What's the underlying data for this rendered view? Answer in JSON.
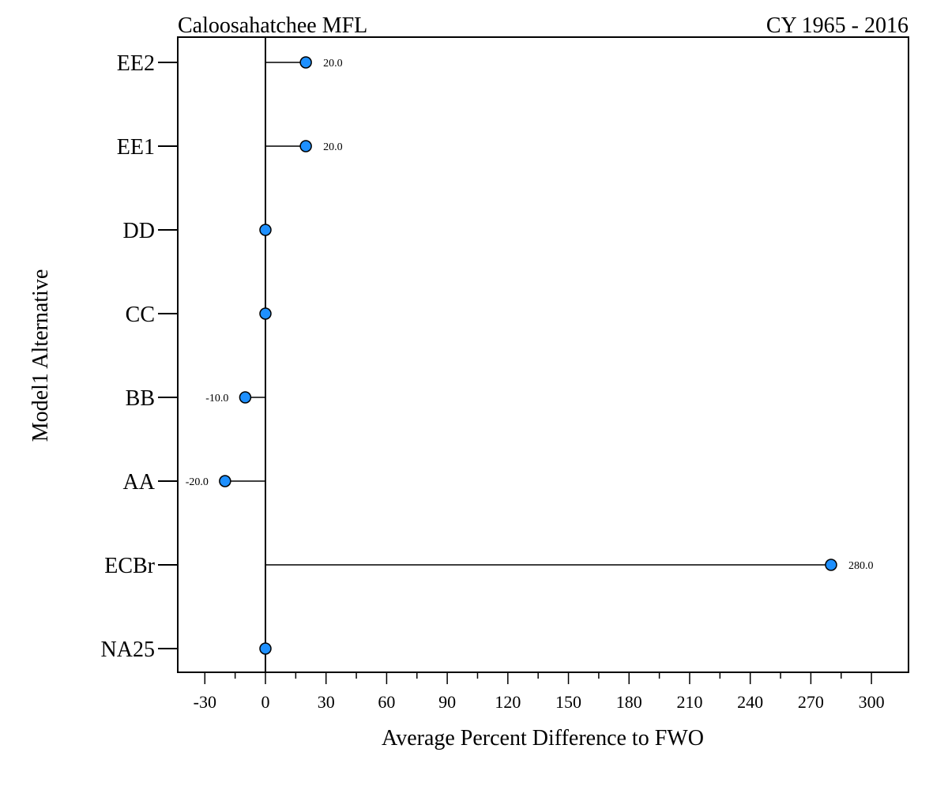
{
  "chart_data": {
    "type": "dot",
    "title": "Caloosahatchee MFL",
    "subtitle": "CY 1965 - 2016",
    "xlabel": "Average Percent Difference to FWO",
    "ylabel": "Model1 Alternative",
    "xlim": [
      -40,
      310
    ],
    "xticks": [
      -30,
      0,
      30,
      60,
      90,
      120,
      150,
      180,
      210,
      240,
      270,
      300
    ],
    "xtick_labels": [
      "-30",
      "0",
      "30",
      "60",
      "90",
      "120",
      "150",
      "180",
      "210",
      "240",
      "270",
      "300"
    ],
    "categories": [
      "NA25",
      "ECBr",
      "AA",
      "BB",
      "CC",
      "DD",
      "EE1",
      "EE2"
    ],
    "values": [
      0,
      280,
      -20,
      -10,
      0,
      0,
      20,
      20
    ],
    "data_labels": [
      "",
      "280.0",
      "-20.0",
      "-10.0",
      "",
      "",
      "20.0",
      "20.0"
    ],
    "reference_line": 0,
    "marker_color": "#1E90FF",
    "grid": false
  }
}
